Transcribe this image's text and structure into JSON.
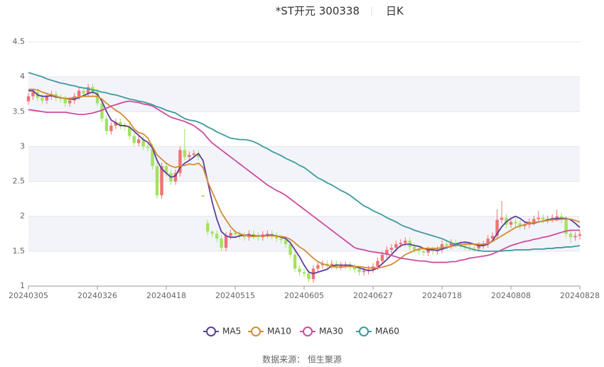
{
  "chart_data": {
    "type": "candlestick",
    "title": "*ST开元 300338",
    "period": "日K",
    "source": "数据来源： 恒生聚源",
    "categories": [
      "20240305",
      null,
      null,
      null,
      null,
      null,
      null,
      null,
      null,
      null,
      null,
      null,
      null,
      null,
      null,
      "20240326",
      null,
      null,
      null,
      null,
      null,
      null,
      null,
      null,
      null,
      null,
      null,
      null,
      null,
      null,
      "20240418",
      null,
      null,
      null,
      null,
      null,
      null,
      null,
      null,
      null,
      null,
      null,
      null,
      null,
      null,
      "20240515",
      null,
      null,
      null,
      null,
      null,
      null,
      null,
      null,
      null,
      null,
      null,
      null,
      null,
      null,
      "20240605",
      null,
      null,
      null,
      null,
      null,
      null,
      null,
      null,
      null,
      null,
      null,
      null,
      null,
      null,
      "20240627",
      null,
      null,
      null,
      null,
      null,
      null,
      null,
      null,
      null,
      null,
      null,
      null,
      null,
      null,
      "20240718",
      null,
      null,
      null,
      null,
      null,
      null,
      null,
      null,
      null,
      null,
      null,
      null,
      null,
      null,
      "20240808",
      null,
      null,
      null,
      null,
      null,
      null,
      null,
      null,
      null,
      null,
      null,
      null,
      null,
      null,
      "20240828"
    ],
    "candles": {
      "open": [
        3.65,
        3.72,
        3.78,
        3.7,
        3.66,
        3.72,
        3.75,
        3.7,
        3.68,
        3.62,
        3.66,
        3.72,
        3.8,
        3.76,
        3.85,
        3.78,
        3.62,
        3.4,
        3.22,
        3.3,
        3.35,
        3.3,
        3.28,
        3.15,
        3.05,
        3.1,
        3.0,
        2.98,
        2.72,
        2.3,
        2.72,
        2.62,
        2.5,
        2.62,
        2.95,
        2.85,
        2.88,
        2.9,
        2.3,
        1.9,
        1.78,
        1.75,
        1.68,
        1.55,
        1.72,
        1.76,
        1.74,
        1.72,
        1.7,
        1.75,
        1.72,
        1.7,
        1.74,
        1.75,
        1.72,
        1.68,
        1.66,
        1.6,
        1.45,
        1.25,
        1.2,
        1.18,
        1.1,
        1.25,
        1.3,
        1.32,
        1.3,
        1.32,
        1.28,
        1.3,
        1.3,
        1.27,
        1.24,
        1.2,
        1.22,
        1.24,
        1.28,
        1.36,
        1.45,
        1.52,
        1.55,
        1.6,
        1.62,
        1.65,
        1.56,
        1.52,
        1.5,
        1.48,
        1.52,
        1.5,
        1.52,
        1.6,
        1.58,
        1.62,
        1.6,
        1.58,
        1.56,
        1.55,
        1.54,
        1.58,
        1.6,
        1.68,
        1.72,
        1.95,
        1.98,
        1.88,
        1.92,
        1.9,
        1.86,
        1.88,
        1.92,
        1.96,
        1.98,
        1.95,
        1.96,
        1.98,
        2.0,
        1.95,
        1.75,
        1.7,
        1.72
      ],
      "close": [
        3.72,
        3.78,
        3.7,
        3.66,
        3.72,
        3.75,
        3.7,
        3.68,
        3.62,
        3.66,
        3.72,
        3.8,
        3.76,
        3.85,
        3.78,
        3.62,
        3.4,
        3.22,
        3.3,
        3.35,
        3.3,
        3.28,
        3.15,
        3.05,
        3.1,
        3.0,
        2.98,
        2.72,
        2.3,
        2.72,
        2.62,
        2.5,
        2.62,
        2.95,
        2.85,
        2.88,
        2.9,
        2.85,
        2.28,
        1.78,
        1.75,
        1.68,
        1.55,
        1.72,
        1.76,
        1.74,
        1.72,
        1.7,
        1.75,
        1.72,
        1.7,
        1.74,
        1.75,
        1.72,
        1.68,
        1.66,
        1.6,
        1.45,
        1.25,
        1.2,
        1.18,
        1.1,
        1.25,
        1.3,
        1.32,
        1.3,
        1.32,
        1.28,
        1.3,
        1.3,
        1.27,
        1.24,
        1.2,
        1.22,
        1.24,
        1.28,
        1.36,
        1.45,
        1.52,
        1.55,
        1.6,
        1.62,
        1.65,
        1.56,
        1.52,
        1.5,
        1.48,
        1.52,
        1.5,
        1.52,
        1.6,
        1.58,
        1.62,
        1.6,
        1.58,
        1.56,
        1.55,
        1.54,
        1.58,
        1.6,
        1.68,
        1.72,
        1.95,
        1.98,
        1.88,
        1.92,
        1.9,
        1.86,
        1.88,
        1.92,
        1.96,
        1.98,
        1.95,
        1.96,
        1.98,
        2.0,
        1.95,
        1.75,
        1.7,
        1.72,
        1.74
      ],
      "low": [
        3.6,
        3.67,
        3.65,
        3.61,
        3.61,
        3.67,
        3.65,
        3.63,
        3.57,
        3.57,
        3.61,
        3.67,
        3.71,
        3.71,
        3.73,
        3.57,
        3.35,
        3.17,
        3.17,
        3.25,
        3.25,
        3.23,
        3.1,
        3.0,
        3.0,
        2.95,
        2.93,
        2.67,
        2.25,
        2.25,
        2.57,
        2.45,
        2.45,
        2.57,
        2.8,
        2.8,
        2.83,
        2.8,
        2.28,
        1.73,
        1.7,
        1.63,
        1.5,
        1.5,
        1.67,
        1.69,
        1.67,
        1.65,
        1.65,
        1.67,
        1.65,
        1.65,
        1.69,
        1.67,
        1.63,
        1.61,
        1.55,
        1.4,
        1.2,
        1.15,
        1.13,
        1.05,
        1.05,
        1.2,
        1.25,
        1.25,
        1.25,
        1.23,
        1.23,
        1.25,
        1.22,
        1.19,
        1.15,
        1.15,
        1.17,
        1.19,
        1.23,
        1.31,
        1.4,
        1.47,
        1.5,
        1.55,
        1.57,
        1.51,
        1.47,
        1.45,
        1.43,
        1.43,
        1.45,
        1.45,
        1.47,
        1.53,
        1.53,
        1.55,
        1.53,
        1.51,
        1.5,
        1.49,
        1.49,
        1.53,
        1.55,
        1.63,
        1.67,
        1.9,
        1.83,
        1.83,
        1.85,
        1.81,
        1.81,
        1.83,
        1.87,
        1.91,
        1.9,
        1.9,
        1.91,
        1.93,
        1.9,
        1.7,
        1.62,
        1.65,
        1.67
      ],
      "high": [
        3.77,
        3.83,
        3.83,
        3.75,
        3.77,
        3.8,
        3.8,
        3.75,
        3.73,
        3.71,
        3.77,
        3.85,
        3.85,
        3.9,
        3.9,
        3.83,
        3.67,
        3.45,
        3.35,
        3.4,
        3.4,
        3.35,
        3.33,
        3.2,
        3.15,
        3.15,
        3.05,
        3.03,
        2.77,
        2.77,
        2.77,
        2.67,
        2.67,
        3.0,
        3.25,
        2.93,
        2.95,
        2.95,
        2.3,
        1.95,
        1.8,
        1.8,
        1.73,
        1.77,
        1.81,
        1.81,
        1.79,
        1.77,
        1.8,
        1.8,
        1.77,
        1.79,
        1.8,
        1.8,
        1.77,
        1.73,
        1.71,
        1.65,
        1.5,
        1.3,
        1.25,
        1.23,
        1.3,
        1.35,
        1.37,
        1.37,
        1.37,
        1.37,
        1.35,
        1.35,
        1.35,
        1.32,
        1.29,
        1.27,
        1.29,
        1.33,
        1.41,
        1.5,
        1.57,
        1.6,
        1.65,
        1.67,
        1.7,
        1.7,
        1.61,
        1.57,
        1.55,
        1.57,
        1.57,
        1.57,
        1.65,
        1.65,
        1.67,
        1.67,
        1.65,
        1.63,
        1.61,
        1.6,
        1.63,
        1.65,
        1.73,
        1.77,
        2.1,
        2.22,
        2.03,
        1.97,
        1.97,
        1.95,
        1.93,
        1.97,
        2.01,
        2.08,
        2.03,
        2.01,
        2.03,
        2.1,
        2.05,
        2.0,
        1.8,
        1.77,
        1.79
      ]
    },
    "up_color": "#f07272",
    "down_color": "#a2e35e",
    "series": [
      {
        "name": "MA5",
        "color": "#5b3f99",
        "values": [
          3.8,
          3.8,
          3.74,
          3.72,
          3.72,
          3.73,
          3.71,
          3.7,
          3.69,
          3.68,
          3.68,
          3.7,
          3.73,
          3.76,
          3.78,
          3.75,
          3.65,
          3.5,
          3.38,
          3.34,
          3.3,
          3.3,
          3.28,
          3.22,
          3.16,
          3.1,
          3.06,
          2.98,
          2.8,
          2.68,
          2.62,
          2.56,
          2.58,
          2.7,
          2.76,
          2.8,
          2.85,
          2.9,
          2.8,
          2.5,
          2.2,
          1.96,
          1.78,
          1.72,
          1.7,
          1.7,
          1.72,
          1.73,
          1.73,
          1.72,
          1.72,
          1.72,
          1.73,
          1.73,
          1.72,
          1.7,
          1.68,
          1.62,
          1.52,
          1.42,
          1.3,
          1.2,
          1.18,
          1.2,
          1.22,
          1.24,
          1.29,
          1.3,
          1.3,
          1.3,
          1.3,
          1.28,
          1.26,
          1.24,
          1.22,
          1.23,
          1.26,
          1.32,
          1.38,
          1.45,
          1.52,
          1.58,
          1.6,
          1.6,
          1.58,
          1.57,
          1.54,
          1.52,
          1.52,
          1.51,
          1.53,
          1.55,
          1.57,
          1.6,
          1.62,
          1.63,
          1.62,
          1.6,
          1.58,
          1.58,
          1.6,
          1.65,
          1.75,
          1.85,
          1.92,
          1.97,
          2.0,
          1.97,
          1.92,
          1.9,
          1.9,
          1.92,
          1.93,
          1.95,
          1.96,
          1.97,
          1.97,
          1.97,
          1.95,
          1.9,
          1.84
        ]
      },
      {
        "name": "MA10",
        "color": "#d58a34",
        "values": [
          3.82,
          3.82,
          3.81,
          3.78,
          3.76,
          3.74,
          3.72,
          3.7,
          3.69,
          3.69,
          3.7,
          3.71,
          3.72,
          3.72,
          3.72,
          3.72,
          3.68,
          3.62,
          3.57,
          3.52,
          3.48,
          3.42,
          3.35,
          3.25,
          3.2,
          3.18,
          3.12,
          3.0,
          2.88,
          2.82,
          2.76,
          2.72,
          2.7,
          2.72,
          2.73,
          2.75,
          2.74,
          2.76,
          2.7,
          2.5,
          2.35,
          2.2,
          2.05,
          1.95,
          1.85,
          1.78,
          1.75,
          1.73,
          1.72,
          1.71,
          1.72,
          1.72,
          1.72,
          1.72,
          1.72,
          1.71,
          1.7,
          1.67,
          1.62,
          1.56,
          1.52,
          1.46,
          1.4,
          1.35,
          1.32,
          1.3,
          1.28,
          1.27,
          1.27,
          1.28,
          1.28,
          1.28,
          1.28,
          1.27,
          1.26,
          1.26,
          1.26,
          1.27,
          1.29,
          1.31,
          1.35,
          1.4,
          1.45,
          1.48,
          1.51,
          1.53,
          1.54,
          1.54,
          1.54,
          1.54,
          1.55,
          1.56,
          1.57,
          1.58,
          1.59,
          1.6,
          1.6,
          1.6,
          1.6,
          1.6,
          1.61,
          1.64,
          1.68,
          1.72,
          1.76,
          1.8,
          1.84,
          1.86,
          1.88,
          1.9,
          1.91,
          1.92,
          1.93,
          1.94,
          1.95,
          1.95,
          1.96,
          1.96,
          1.96,
          1.94,
          1.92
        ]
      },
      {
        "name": "MA30",
        "color": "#cc4c9e",
        "values": [
          3.53,
          3.52,
          3.51,
          3.5,
          3.49,
          3.49,
          3.49,
          3.49,
          3.49,
          3.48,
          3.47,
          3.46,
          3.46,
          3.47,
          3.48,
          3.5,
          3.52,
          3.55,
          3.58,
          3.6,
          3.62,
          3.64,
          3.65,
          3.64,
          3.63,
          3.61,
          3.6,
          3.58,
          3.54,
          3.5,
          3.46,
          3.42,
          3.4,
          3.38,
          3.36,
          3.33,
          3.3,
          3.25,
          3.2,
          3.12,
          3.05,
          3.0,
          2.95,
          2.9,
          2.85,
          2.8,
          2.75,
          2.7,
          2.65,
          2.6,
          2.55,
          2.5,
          2.45,
          2.41,
          2.37,
          2.34,
          2.3,
          2.25,
          2.2,
          2.15,
          2.1,
          2.05,
          2.0,
          1.95,
          1.9,
          1.85,
          1.8,
          1.75,
          1.7,
          1.65,
          1.6,
          1.55,
          1.53,
          1.52,
          1.5,
          1.49,
          1.48,
          1.47,
          1.46,
          1.44,
          1.42,
          1.4,
          1.39,
          1.38,
          1.37,
          1.36,
          1.36,
          1.35,
          1.34,
          1.34,
          1.34,
          1.34,
          1.35,
          1.35,
          1.37,
          1.38,
          1.4,
          1.41,
          1.42,
          1.43,
          1.44,
          1.46,
          1.49,
          1.52,
          1.55,
          1.58,
          1.6,
          1.62,
          1.64,
          1.65,
          1.67,
          1.68,
          1.7,
          1.71,
          1.73,
          1.75,
          1.77,
          1.79,
          1.8,
          1.8,
          1.8
        ]
      },
      {
        "name": "MA60",
        "color": "#3d9a9b",
        "values": [
          4.06,
          4.04,
          4.02,
          4.0,
          3.97,
          3.95,
          3.93,
          3.91,
          3.9,
          3.88,
          3.87,
          3.85,
          3.84,
          3.83,
          3.81,
          3.8,
          3.78,
          3.77,
          3.75,
          3.74,
          3.72,
          3.7,
          3.68,
          3.67,
          3.65,
          3.64,
          3.62,
          3.6,
          3.57,
          3.55,
          3.52,
          3.5,
          3.48,
          3.44,
          3.4,
          3.38,
          3.37,
          3.35,
          3.32,
          3.28,
          3.25,
          3.21,
          3.18,
          3.15,
          3.12,
          3.11,
          3.1,
          3.1,
          3.09,
          3.07,
          3.04,
          3.0,
          2.97,
          2.93,
          2.9,
          2.87,
          2.83,
          2.8,
          2.77,
          2.73,
          2.7,
          2.65,
          2.6,
          2.55,
          2.52,
          2.48,
          2.45,
          2.41,
          2.37,
          2.34,
          2.3,
          2.25,
          2.2,
          2.15,
          2.12,
          2.08,
          2.05,
          2.02,
          1.98,
          1.95,
          1.92,
          1.88,
          1.85,
          1.83,
          1.8,
          1.78,
          1.76,
          1.74,
          1.72,
          1.7,
          1.68,
          1.65,
          1.62,
          1.6,
          1.58,
          1.56,
          1.54,
          1.52,
          1.51,
          1.5,
          1.5,
          1.5,
          1.5,
          1.5,
          1.51,
          1.51,
          1.52,
          1.52,
          1.52,
          1.52,
          1.53,
          1.53,
          1.53,
          1.54,
          1.54,
          1.55,
          1.55,
          1.56,
          1.56,
          1.57,
          1.58
        ]
      }
    ],
    "ylim": [
      1,
      4.5
    ],
    "yticks": [
      1,
      1.5,
      2,
      2.5,
      3,
      3.5,
      4,
      4.5
    ],
    "grid": true
  }
}
